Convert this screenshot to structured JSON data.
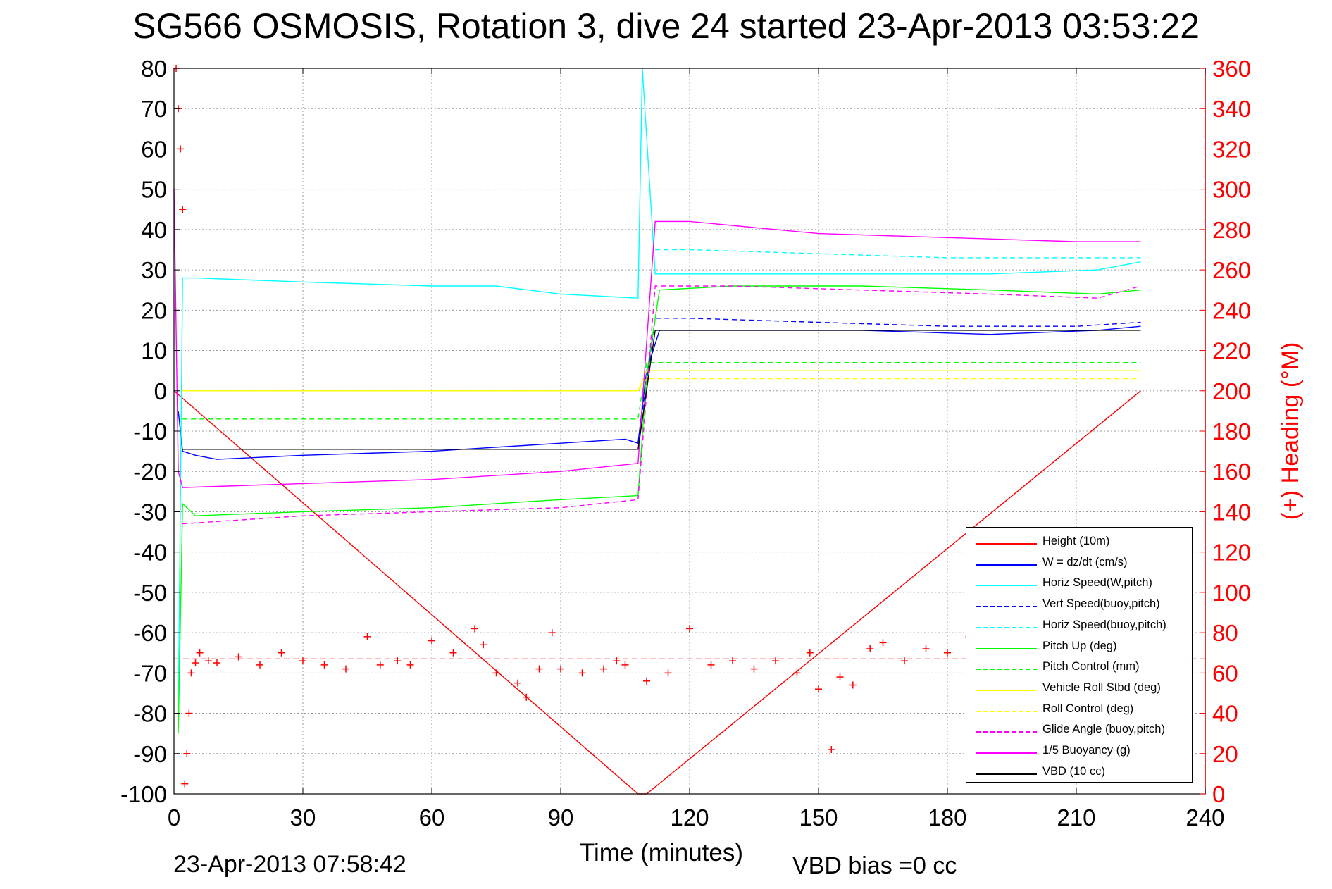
{
  "title": "SG566 OSMOSIS, Rotation 3, dive 24 started 23-Apr-2013 03:53:22",
  "footer": {
    "date": "23-Apr-2013 07:58:42",
    "vbd_bias": "VBD bias =0 cc"
  },
  "chart_data": {
    "type": "line",
    "xlabel": "Time (minutes)",
    "ylabel_left": "",
    "ylabel_right": "(+) Heading (°M)",
    "xlim": [
      0,
      240
    ],
    "ylim_left": [
      -100,
      80
    ],
    "ylim_right": [
      0,
      360
    ],
    "xticks": [
      0,
      30,
      60,
      90,
      120,
      150,
      180,
      210,
      240
    ],
    "yticks_left": [
      80,
      70,
      60,
      50,
      40,
      30,
      20,
      10,
      0,
      -10,
      -20,
      -30,
      -40,
      -50,
      -60,
      -70,
      -80,
      -90,
      -100
    ],
    "yticks_right": [
      360,
      340,
      320,
      300,
      280,
      260,
      240,
      220,
      200,
      180,
      160,
      140,
      120,
      100,
      80,
      60,
      40,
      20,
      0
    ],
    "grid": true,
    "legend_position": "bottom-right",
    "right_axis_color": "#ff0000",
    "series": [
      {
        "name": "Height (10m)",
        "color": "#ff0000",
        "style": "solid",
        "x": [
          0,
          108,
          110,
          225
        ],
        "y": [
          0,
          -100,
          -100,
          0
        ]
      },
      {
        "name": "W = dz/dt (cm/s)",
        "color": "#0000ff",
        "style": "solid",
        "x": [
          1,
          2,
          5,
          10,
          30,
          60,
          90,
          105,
          108,
          110,
          113,
          130,
          160,
          190,
          215,
          225
        ],
        "y": [
          -5,
          -15,
          -16,
          -17,
          -16,
          -15,
          -13,
          -12,
          -13,
          5,
          15,
          15,
          15,
          14,
          15,
          16
        ]
      },
      {
        "name": "Horiz Speed(W,pitch)",
        "color": "#00ffff",
        "style": "solid",
        "x": [
          1,
          2,
          5,
          30,
          60,
          75,
          90,
          108,
          109,
          112,
          130,
          160,
          190,
          215,
          225
        ],
        "y": [
          -80,
          28,
          28,
          27,
          26,
          26,
          24,
          23,
          80,
          29,
          29,
          29,
          29,
          30,
          32
        ]
      },
      {
        "name": "Vert Speed(buoy,pitch)",
        "color": "#0000ff",
        "style": "dashed",
        "x": [
          108,
          112,
          120,
          150,
          180,
          210,
          225
        ],
        "y": [
          -13,
          18,
          18,
          17,
          16,
          16,
          17
        ]
      },
      {
        "name": "Horiz Speed(buoy,pitch)",
        "color": "#00ffff",
        "style": "dashed",
        "x": [
          112,
          120,
          150,
          180,
          210,
          225
        ],
        "y": [
          35,
          35,
          34,
          33,
          33,
          33
        ]
      },
      {
        "name": "Pitch Up (deg)",
        "color": "#00ff00",
        "style": "solid",
        "x": [
          1,
          2,
          5,
          30,
          60,
          90,
          108,
          110,
          113,
          130,
          160,
          190,
          215,
          225
        ],
        "y": [
          -85,
          -28,
          -31,
          -30,
          -29,
          -27,
          -26,
          4,
          25,
          26,
          26,
          25,
          24,
          25
        ]
      },
      {
        "name": "Pitch Control (mm)",
        "color": "#00ff00",
        "style": "dashed",
        "x": [
          2,
          108,
          110,
          225
        ],
        "y": [
          -7,
          -7,
          7,
          7
        ]
      },
      {
        "name": "Vehicle Roll Stbd (deg)",
        "color": "#ffff00",
        "style": "solid",
        "x": [
          2,
          108,
          110,
          225
        ],
        "y": [
          0,
          0,
          5,
          5
        ]
      },
      {
        "name": "Roll Control (deg)",
        "color": "#ffff00",
        "style": "dashed",
        "x": [
          2,
          108,
          110,
          225
        ],
        "y": [
          0,
          0,
          3,
          3
        ]
      },
      {
        "name": "Glide Angle (buoy,pitch)",
        "color": "#ff00ff",
        "style": "dashed",
        "x": [
          2,
          30,
          60,
          90,
          108,
          112,
          130,
          160,
          190,
          215,
          225
        ],
        "y": [
          -33,
          -31,
          -30,
          -29,
          -27,
          26,
          26,
          25,
          24,
          23,
          26
        ]
      },
      {
        "name": "1/5 Buoyancy (g)",
        "color": "#ff00ff",
        "style": "solid",
        "x": [
          0,
          1,
          2,
          30,
          60,
          90,
          108,
          112,
          120,
          150,
          180,
          210,
          225
        ],
        "y": [
          50,
          -20,
          -24,
          -23,
          -22,
          -20,
          -18,
          42,
          42,
          39,
          38,
          37,
          37
        ]
      },
      {
        "name": "VBD (10 cc)",
        "color": "#000000",
        "style": "solid",
        "x": [
          2,
          108,
          112,
          225
        ],
        "y": [
          -14.5,
          -14.5,
          15,
          15
        ]
      }
    ],
    "heading": {
      "name": "Heading",
      "color": "#ff0000",
      "marker": "+",
      "axis": "right",
      "mean": 67,
      "x": [
        0.5,
        1,
        1.5,
        2,
        2.5,
        3,
        3.5,
        4,
        5,
        6,
        8,
        10,
        15,
        20,
        25,
        30,
        35,
        40,
        45,
        48,
        52,
        55,
        60,
        65,
        70,
        72,
        75,
        80,
        82,
        85,
        88,
        90,
        95,
        100,
        103,
        105,
        110,
        115,
        120,
        125,
        130,
        135,
        140,
        145,
        148,
        150,
        153,
        155,
        158,
        162,
        165,
        170,
        175,
        180,
        185,
        190,
        195,
        200,
        205,
        210,
        215,
        220,
        225
      ],
      "y": [
        360,
        340,
        320,
        290,
        5,
        20,
        40,
        60,
        65,
        70,
        66,
        65,
        68,
        64,
        70,
        66,
        64,
        62,
        78,
        64,
        66,
        64,
        76,
        70,
        82,
        74,
        60,
        55,
        48,
        62,
        80,
        62,
        60,
        62,
        66,
        64,
        56,
        60,
        82,
        64,
        66,
        62,
        66,
        60,
        70,
        52,
        22,
        58,
        54,
        72,
        75,
        66,
        72,
        70,
        78,
        66,
        72,
        70,
        74,
        68,
        70,
        72,
        74
      ]
    }
  }
}
